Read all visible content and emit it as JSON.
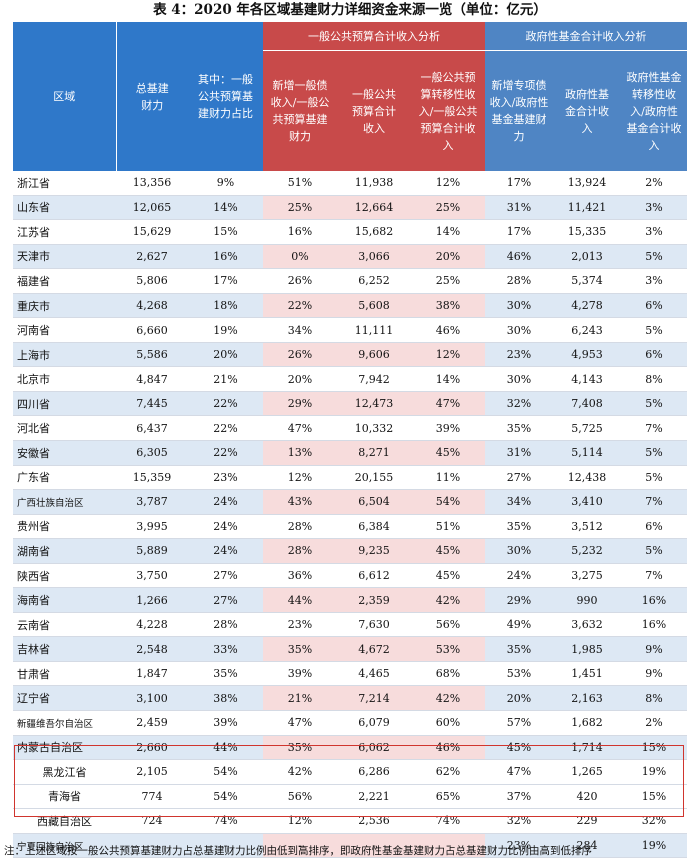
{
  "title": "表 4：2020 年各区域基建财力详细资金来源一览（单位：亿元）",
  "headers": {
    "region": "区域",
    "total": "总基建财力",
    "share": "其中：一般公共预算基建财力占比",
    "group_general": "一般公共预算合计收入分析",
    "group_fund": "政府性基金合计收入分析",
    "g1": "新增一般债收入/一般公共预算基建财力",
    "g2": "一般公共预算合计收入",
    "g3": "一般公共预算转移性收入/一般公共预算合计收入",
    "f1": "新增专项债收入/政府性基金基建财力",
    "f2": "政府性基金合计收入",
    "f3": "政府性基金转移性收入/政府性基金合计收入"
  },
  "rows": [
    [
      "浙江省",
      "13,356",
      "9%",
      "51%",
      "11,938",
      "12%",
      "17%",
      "13,924",
      "2%"
    ],
    [
      "山东省",
      "12,065",
      "14%",
      "25%",
      "12,664",
      "25%",
      "31%",
      "11,421",
      "3%"
    ],
    [
      "江苏省",
      "15,629",
      "15%",
      "16%",
      "15,682",
      "14%",
      "17%",
      "15,335",
      "3%"
    ],
    [
      "天津市",
      "2,627",
      "16%",
      "0%",
      "3,066",
      "20%",
      "46%",
      "2,013",
      "5%"
    ],
    [
      "福建省",
      "5,806",
      "17%",
      "26%",
      "6,252",
      "25%",
      "28%",
      "5,374",
      "3%"
    ],
    [
      "重庆市",
      "4,268",
      "18%",
      "22%",
      "5,608",
      "38%",
      "30%",
      "4,278",
      "6%"
    ],
    [
      "河南省",
      "6,660",
      "19%",
      "34%",
      "11,111",
      "46%",
      "30%",
      "6,243",
      "5%"
    ],
    [
      "上海市",
      "5,586",
      "20%",
      "26%",
      "9,606",
      "12%",
      "23%",
      "4,953",
      "6%"
    ],
    [
      "北京市",
      "4,847",
      "21%",
      "20%",
      "7,942",
      "14%",
      "30%",
      "4,143",
      "8%"
    ],
    [
      "四川省",
      "7,445",
      "22%",
      "29%",
      "12,473",
      "47%",
      "32%",
      "7,408",
      "5%"
    ],
    [
      "河北省",
      "6,437",
      "22%",
      "47%",
      "10,332",
      "39%",
      "35%",
      "5,725",
      "7%"
    ],
    [
      "安徽省",
      "6,305",
      "22%",
      "13%",
      "8,271",
      "45%",
      "31%",
      "5,114",
      "5%"
    ],
    [
      "广东省",
      "15,359",
      "23%",
      "12%",
      "20,155",
      "11%",
      "27%",
      "12,438",
      "5%"
    ],
    [
      "广西壮族自治区",
      "3,787",
      "24%",
      "43%",
      "6,504",
      "54%",
      "34%",
      "3,410",
      "7%"
    ],
    [
      "贵州省",
      "3,995",
      "24%",
      "28%",
      "6,384",
      "51%",
      "35%",
      "3,512",
      "6%"
    ],
    [
      "湖南省",
      "5,889",
      "24%",
      "28%",
      "9,235",
      "45%",
      "30%",
      "5,232",
      "5%"
    ],
    [
      "陕西省",
      "3,750",
      "27%",
      "36%",
      "6,612",
      "45%",
      "24%",
      "3,275",
      "7%"
    ],
    [
      "海南省",
      "1,266",
      "27%",
      "44%",
      "2,359",
      "42%",
      "29%",
      "990",
      "16%"
    ],
    [
      "云南省",
      "4,228",
      "28%",
      "23%",
      "7,630",
      "56%",
      "49%",
      "3,632",
      "16%"
    ],
    [
      "吉林省",
      "2,548",
      "33%",
      "35%",
      "4,672",
      "53%",
      "35%",
      "1,985",
      "9%"
    ],
    [
      "甘肃省",
      "1,847",
      "35%",
      "39%",
      "4,465",
      "68%",
      "53%",
      "1,451",
      "9%"
    ],
    [
      "辽宁省",
      "3,100",
      "38%",
      "21%",
      "7,214",
      "42%",
      "20%",
      "2,163",
      "8%"
    ],
    [
      "新疆维吾尔自治区",
      "2,459",
      "39%",
      "47%",
      "6,079",
      "60%",
      "57%",
      "1,682",
      "2%"
    ],
    [
      "内蒙古自治区",
      "2,660",
      "44%",
      "35%",
      "6,062",
      "46%",
      "45%",
      "1,714",
      "15%"
    ],
    [
      "黑龙江省",
      "2,105",
      "54%",
      "42%",
      "6,286",
      "62%",
      "47%",
      "1,265",
      "19%"
    ],
    [
      "青海省",
      "774",
      "54%",
      "56%",
      "2,221",
      "65%",
      "37%",
      "420",
      "15%"
    ],
    [
      "西藏自治区",
      "724",
      "74%",
      "12%",
      "2,536",
      "74%",
      "32%",
      "229",
      "32%"
    ],
    [
      "宁夏回族自治区",
      "-",
      "-",
      "-",
      "-",
      "-",
      "23%",
      "284",
      "19%"
    ]
  ],
  "note": "注：上述区域按一般公共预算基建财力占总基建财力比例由低到高排序，即政府性基金基建财力占总基建财力比例由高到低排序",
  "colors": {
    "header_blue": "#2f78c9",
    "header_red": "#c84a4a",
    "row_blue_tint": "#dde8f4",
    "row_red_tint": "#f7dcdc",
    "highlight_border": "#d0352e"
  }
}
